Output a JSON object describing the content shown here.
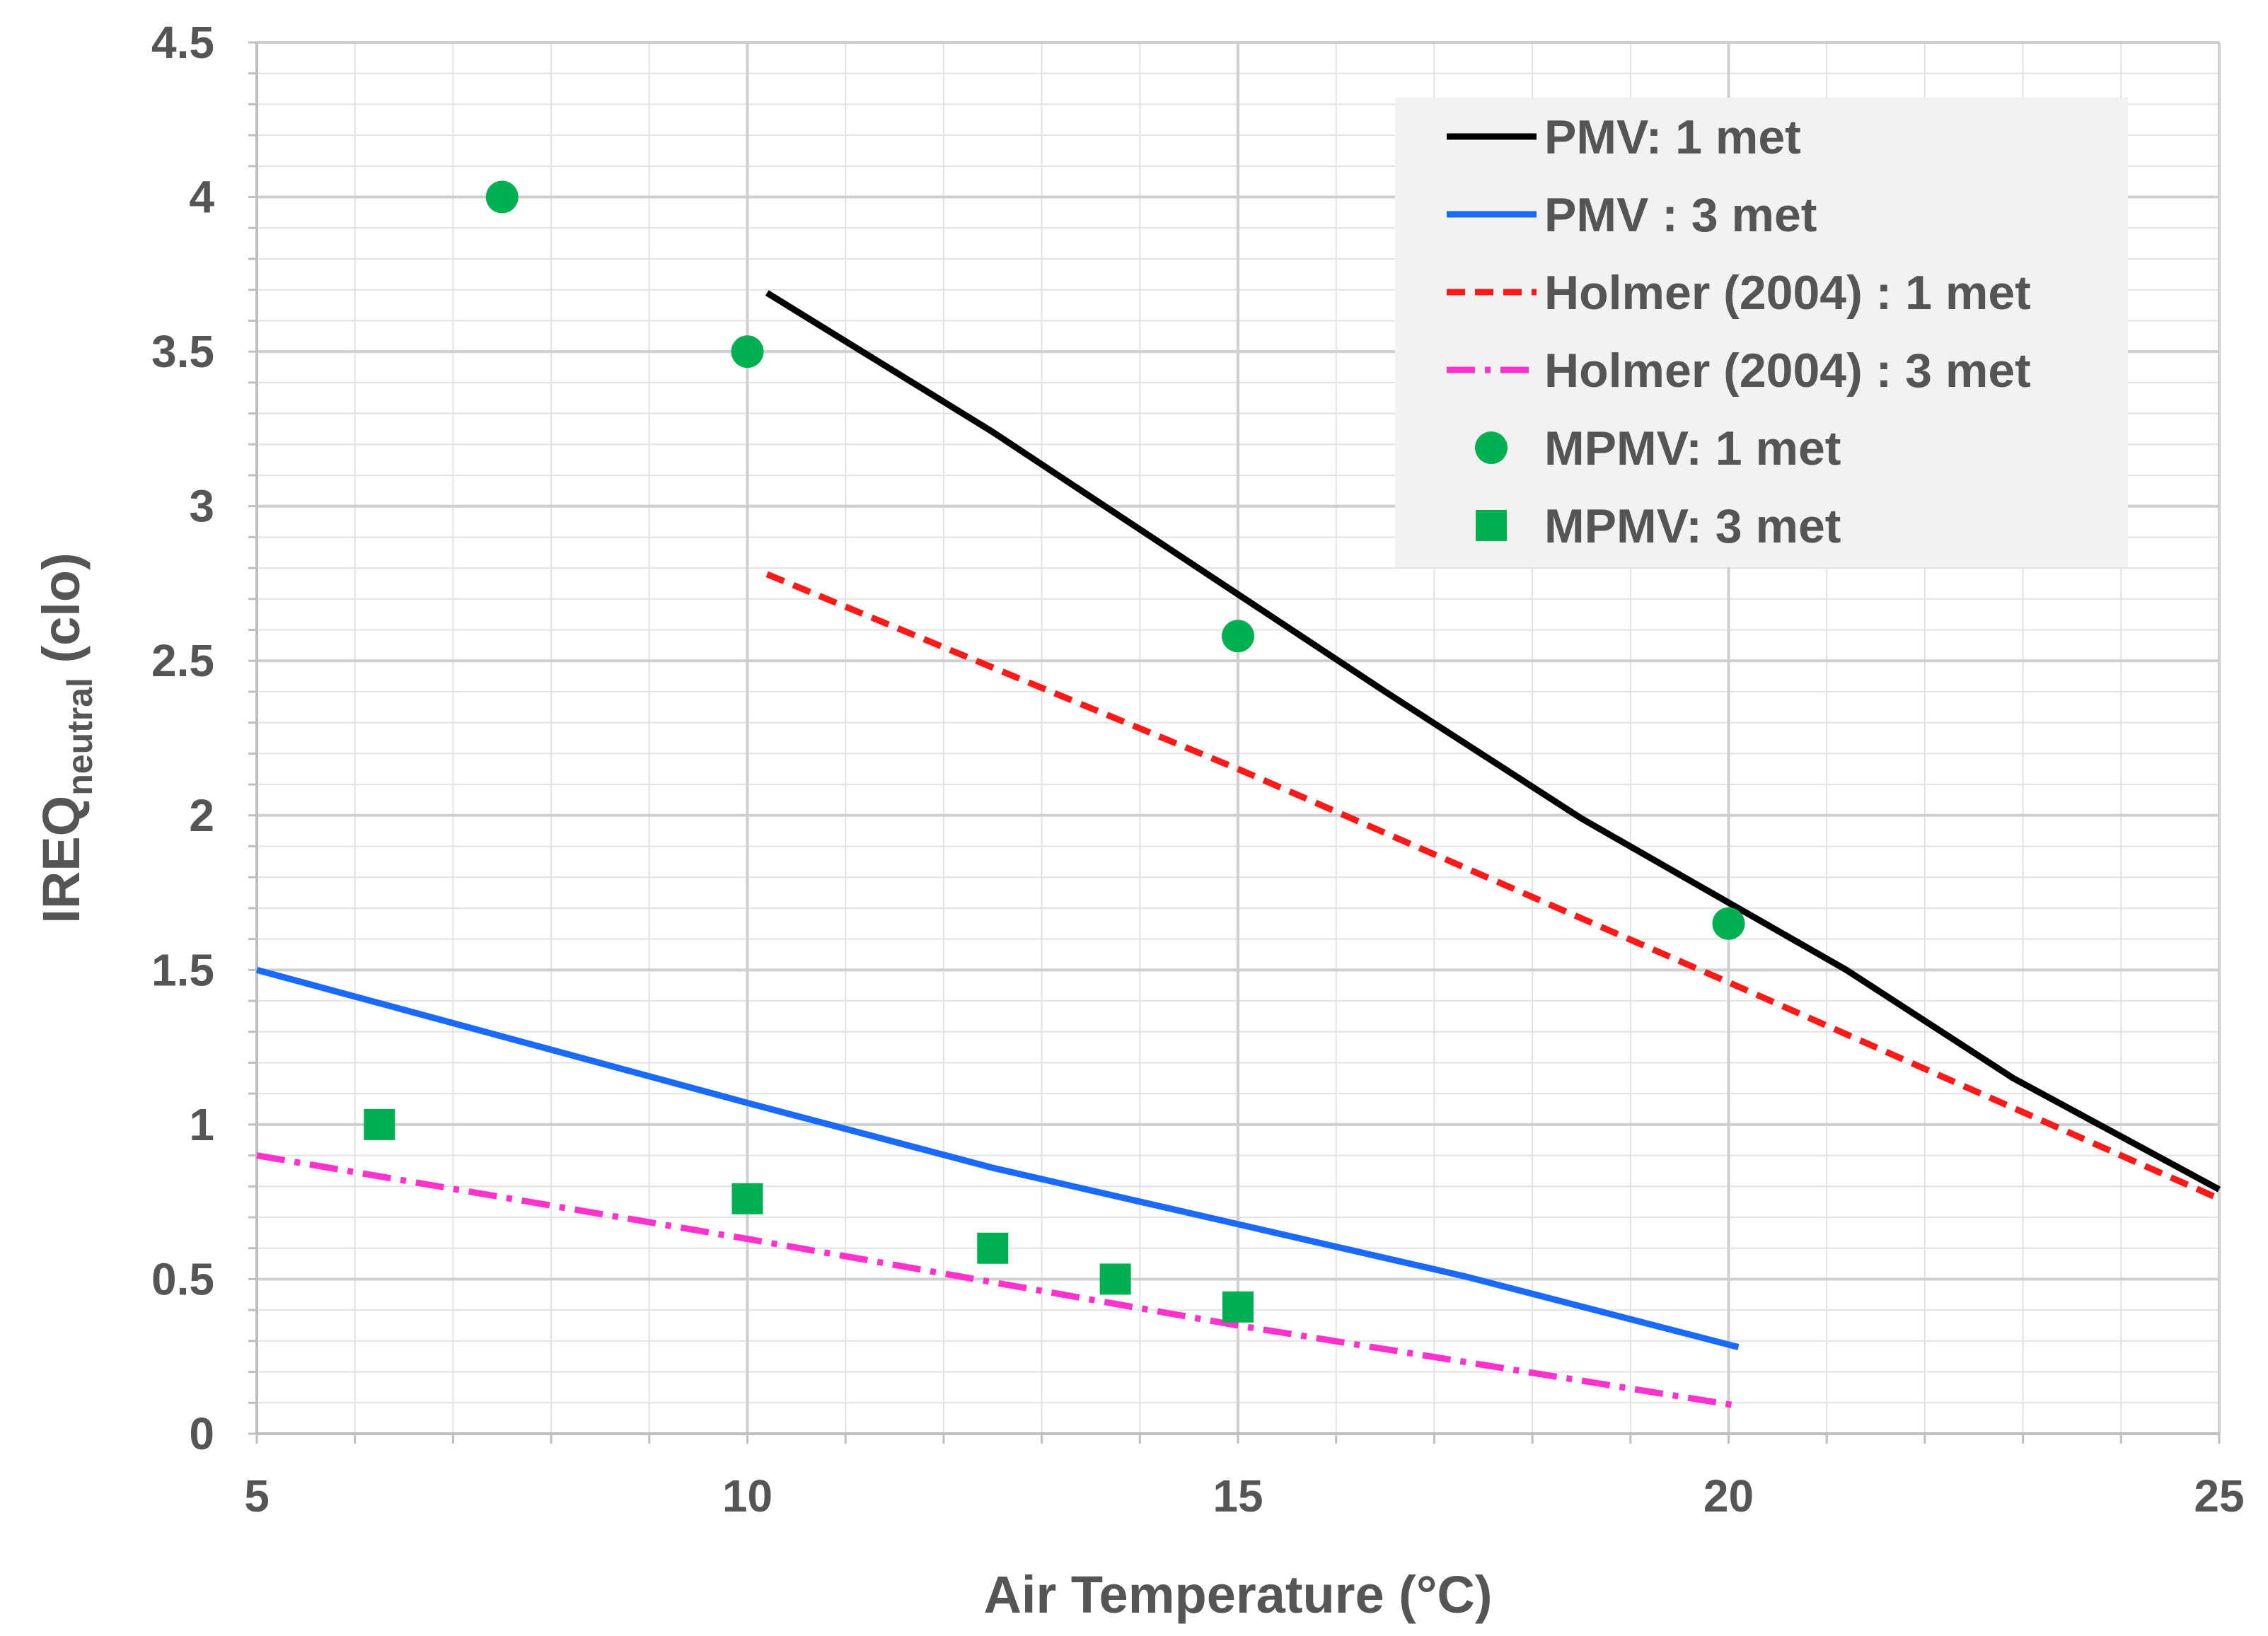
{
  "chart_data": {
    "type": "line",
    "xlabel": "Air Temperature (°C)",
    "ylabel_main": "IREQ",
    "ylabel_sub": "neutral",
    "ylabel_unit": " (clo)",
    "xlim": [
      5,
      25
    ],
    "ylim": [
      0,
      4.5
    ],
    "xticks": [
      5,
      10,
      15,
      20,
      25
    ],
    "yticks": [
      0,
      0.5,
      1,
      1.5,
      2,
      2.5,
      3,
      3.5,
      4,
      4.5
    ],
    "ytick_labels": [
      "0",
      "0.5",
      "1",
      "1.5",
      "2",
      "2.5",
      "3",
      "3.5",
      "4",
      "4.5"
    ],
    "grid": true,
    "legend_position": "top-right",
    "series": [
      {
        "name": "PMV: 1 met",
        "kind": "line",
        "style": "solid",
        "color": "#000000",
        "points": [
          [
            10.2,
            3.69
          ],
          [
            12.5,
            3.24
          ],
          [
            14.5,
            2.82
          ],
          [
            16.5,
            2.4
          ],
          [
            18.5,
            1.99
          ],
          [
            21.2,
            1.5
          ],
          [
            22.9,
            1.15
          ],
          [
            25,
            0.79
          ]
        ]
      },
      {
        "name": "PMV : 3 met",
        "kind": "line",
        "style": "solid",
        "color": "#1a6aff",
        "points": [
          [
            5,
            1.5
          ],
          [
            10,
            1.07
          ],
          [
            12.5,
            0.86
          ],
          [
            17.3,
            0.51
          ],
          [
            20.1,
            0.28
          ]
        ]
      },
      {
        "name": "Holmer (2004) : 1 met",
        "kind": "line",
        "style": "dashed",
        "color": "#ff1a1a",
        "points": [
          [
            10.2,
            2.78
          ],
          [
            15,
            2.15
          ],
          [
            20,
            1.46
          ],
          [
            25,
            0.76
          ]
        ]
      },
      {
        "name": "Holmer (2004) : 3 met",
        "kind": "line",
        "style": "dashdot",
        "color": "#ff33cc",
        "points": [
          [
            5,
            0.9
          ],
          [
            10,
            0.63
          ],
          [
            15,
            0.35
          ],
          [
            20.1,
            0.09
          ]
        ]
      },
      {
        "name": "MPMV: 1 met",
        "kind": "scatter",
        "marker": "circle",
        "color": "#00b050",
        "points": [
          [
            7.5,
            4.0
          ],
          [
            10,
            3.5
          ],
          [
            15,
            2.58
          ],
          [
            20,
            1.65
          ]
        ]
      },
      {
        "name": "MPMV: 3 met",
        "kind": "scatter",
        "marker": "square",
        "color": "#00b050",
        "points": [
          [
            6.25,
            1.0
          ],
          [
            10,
            0.76
          ],
          [
            12.5,
            0.6
          ],
          [
            13.75,
            0.5
          ],
          [
            15,
            0.41
          ]
        ]
      }
    ]
  }
}
